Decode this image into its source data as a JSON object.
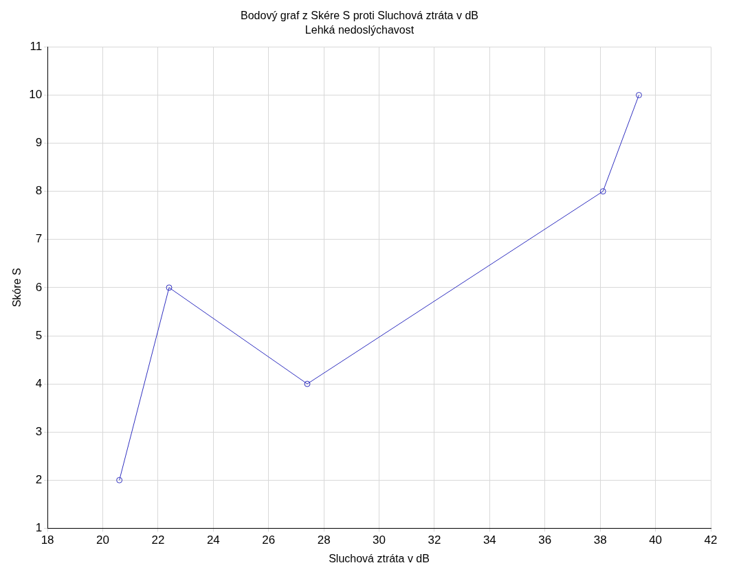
{
  "chart_data": {
    "type": "line",
    "title": "Bodový graf z Skére S proti Sluchová ztráta v dB",
    "subtitle": "Lehká nedoslýchavost",
    "xlabel": "Sluchová ztráta v dB",
    "ylabel": "Skóre S",
    "x": [
      20.6,
      22.4,
      27.4,
      38.1,
      39.4
    ],
    "series": [
      {
        "color": "#3030c0",
        "values": [
          2,
          6,
          4,
          8,
          10
        ]
      }
    ],
    "xlim": [
      18,
      42
    ],
    "xticks": [
      18,
      20,
      22,
      24,
      26,
      28,
      30,
      32,
      34,
      36,
      38,
      40,
      42
    ],
    "ylim": [
      1,
      11
    ],
    "yticks": [
      1,
      2,
      3,
      4,
      5,
      6,
      7,
      8,
      9,
      10,
      11
    ],
    "grid": true,
    "legend": false,
    "marker": "circle",
    "line_style": "solid"
  }
}
